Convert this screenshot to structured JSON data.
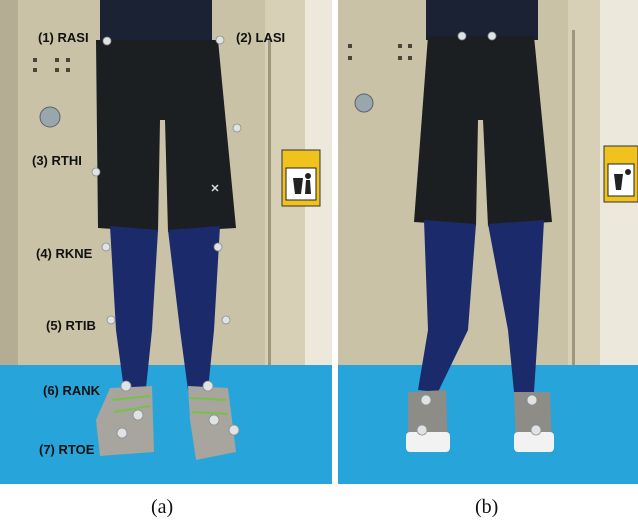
{
  "markers": {
    "rasi": "(1) RASI",
    "lasi": "(2) LASI",
    "rthi": "(3) RTHI",
    "rkne": "(4) RKNE",
    "rtib": "(5) RTIB",
    "rank": "(6) RANK",
    "rtoe": "(7) RTOE"
  },
  "captions": {
    "a": "(a)",
    "b": "(b)"
  }
}
